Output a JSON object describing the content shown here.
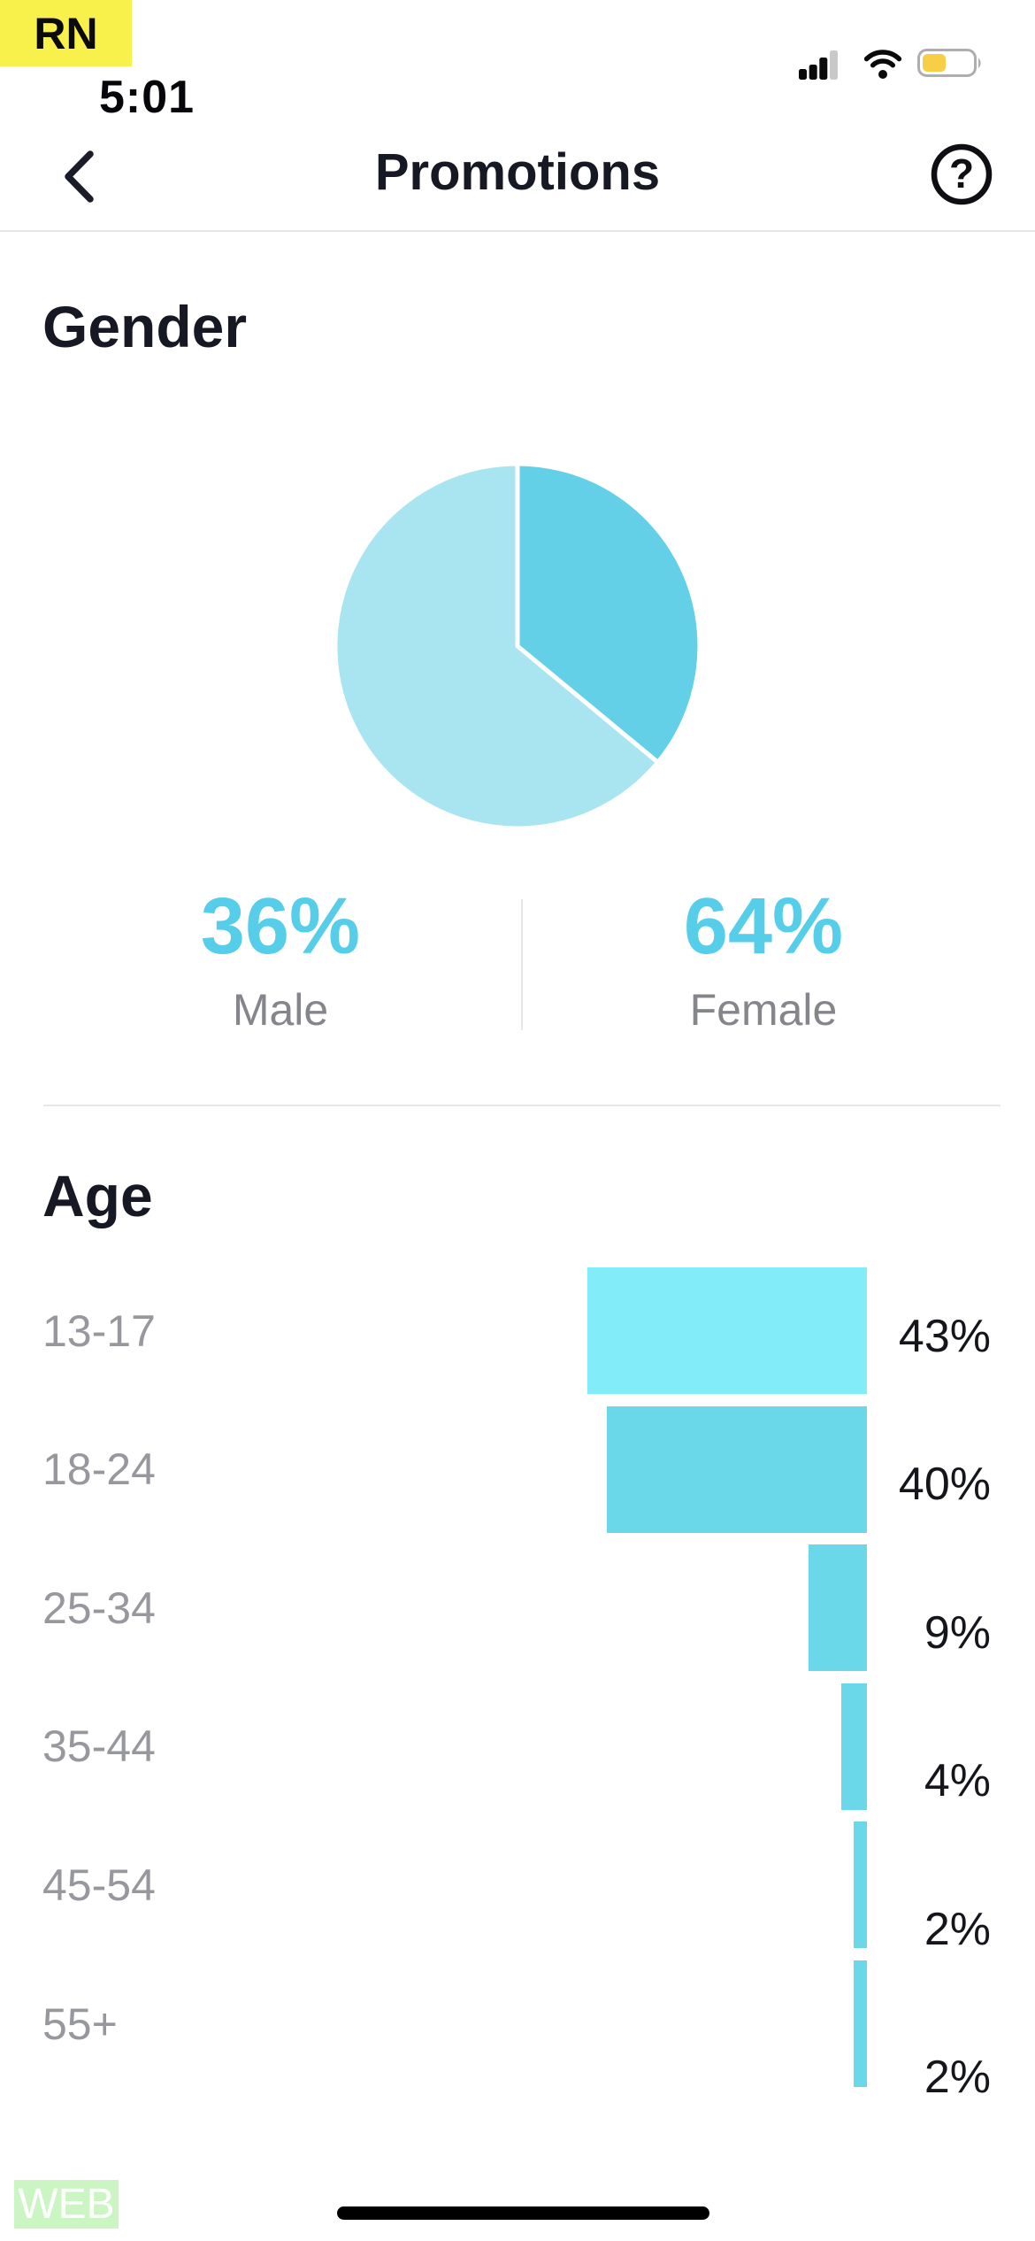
{
  "status_bar": {
    "env_badge": "RN",
    "time": "5:01",
    "cellular_bars_active": 3,
    "cellular_bars_total": 4,
    "battery_fill_percent": 42
  },
  "header": {
    "title": "Promotions",
    "help_glyph": "?"
  },
  "gender_section": {
    "heading": "Gender",
    "stats": [
      {
        "value": "36%",
        "label": "Male"
      },
      {
        "value": "64%",
        "label": "Female"
      }
    ]
  },
  "age_section": {
    "heading": "Age"
  },
  "footer": {
    "platform_badge": "WEB"
  },
  "colors": {
    "accent_cyan_text": "#56CDE9",
    "male_slice": "#63D0E7",
    "female_slice": "#A9E5F0",
    "age_bar_highlight": "#82EDF9",
    "age_bar_default": "#6BD8E9",
    "env_badge_bg": "#F9F14B",
    "battery_fill": "#F7CE46",
    "web_badge_bg": "#CBF5C2",
    "text_dark": "#161823",
    "text_gray": "#97989D"
  },
  "chart_data": [
    {
      "type": "pie",
      "title": "Gender",
      "start": "top",
      "direction": "clockwise",
      "slices": [
        {
          "label": "Male",
          "value": 36,
          "color": "#63D0E7"
        },
        {
          "label": "Female",
          "value": 64,
          "color": "#A9E5F0"
        }
      ]
    },
    {
      "type": "bar",
      "title": "Age",
      "orientation": "horizontal",
      "bar_alignment": "right",
      "categories": [
        "13-17",
        "18-24",
        "25-34",
        "35-44",
        "45-54",
        "55+"
      ],
      "values": [
        43,
        40,
        9,
        4,
        2,
        2
      ],
      "value_labels": [
        "43%",
        "40%",
        "9%",
        "4%",
        "2%",
        "2%"
      ],
      "colors": [
        "#82EDF9",
        "#6BD8E9",
        "#6BD8E9",
        "#6BD8E9",
        "#6BD8E9",
        "#6BD8E9"
      ],
      "xlim": [
        0,
        45
      ],
      "grid": false,
      "legend": false
    }
  ]
}
